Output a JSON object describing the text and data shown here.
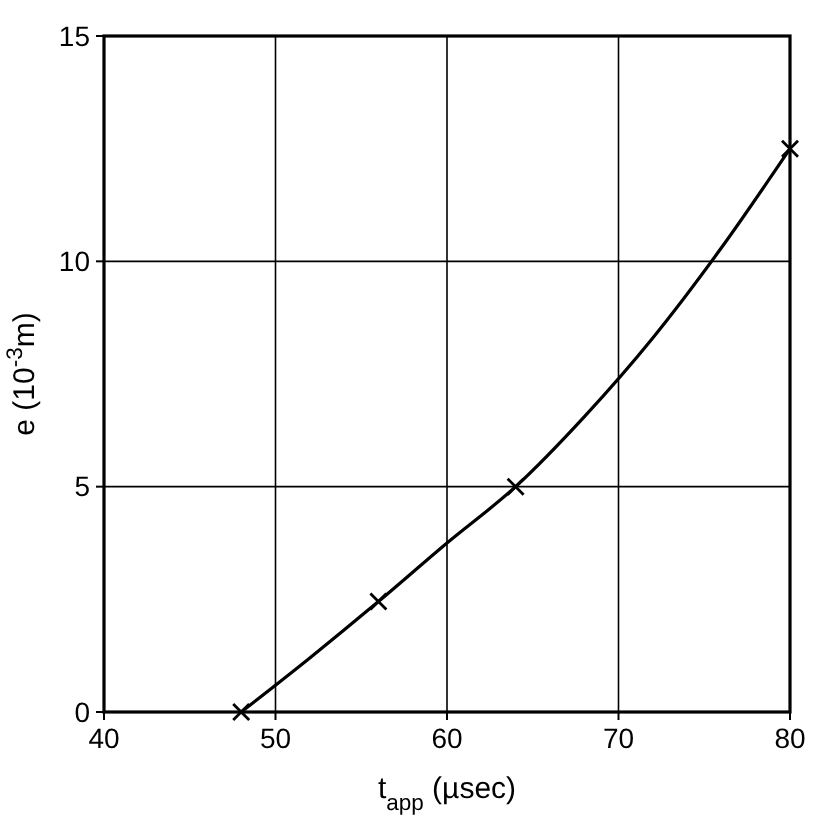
{
  "chart_data": {
    "type": "line",
    "xlabel": "t$_{app}$ (µsec)",
    "ylabel": "e (10$^{-3}$m)",
    "xlim": [
      40,
      80
    ],
    "ylim": [
      0,
      15
    ],
    "xticks": [
      40,
      50,
      60,
      70,
      80
    ],
    "yticks": [
      0,
      5,
      10,
      15
    ],
    "grid": true,
    "series": [
      {
        "color": "#000000",
        "marker": "none",
        "line_style": "solid",
        "x": [
          48,
          52,
          56,
          60,
          64,
          68,
          72,
          76,
          80
        ],
        "values": [
          0,
          1.2,
          2.45,
          3.75,
          5,
          6.55,
          8.3,
          10.3,
          12.5
        ]
      },
      {
        "type": "scatter",
        "color": "#000000",
        "marker": "cross",
        "x": [
          48,
          56,
          64,
          80
        ],
        "values": [
          0,
          2.45,
          5,
          12.5
        ]
      }
    ]
  }
}
